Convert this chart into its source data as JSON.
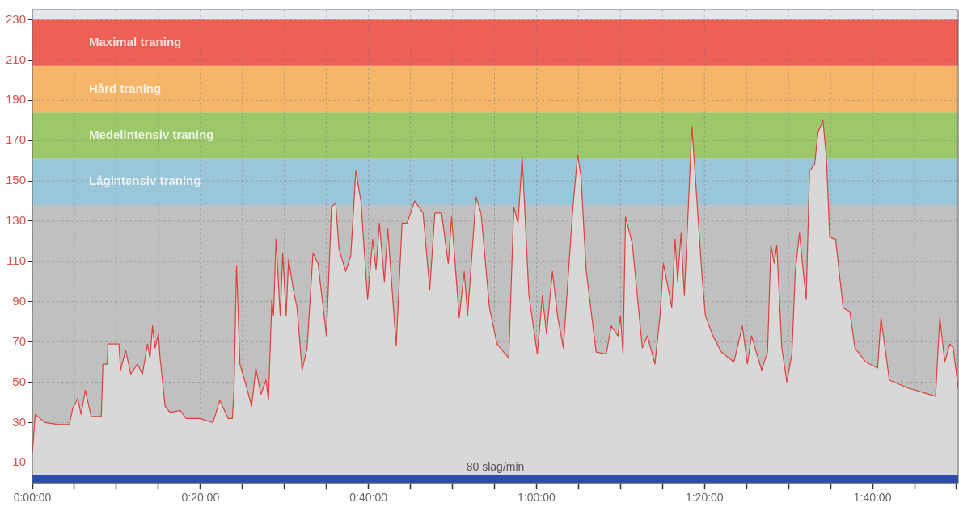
{
  "chart_data": {
    "type": "area",
    "x": [
      0,
      0.34,
      1.5,
      3.1,
      4.4,
      4.8,
      5.4,
      5.8,
      6.3,
      7.0,
      8.2,
      8.4,
      8.9,
      9.0,
      10.3,
      10.5,
      11.1,
      11.7,
      12.5,
      13.1,
      13.7,
      14.0,
      14.3,
      14.6,
      15.0,
      15.2,
      15.8,
      16.4,
      17.6,
      18.3,
      19.9,
      21.5,
      22.3,
      23.3,
      23.8,
      24.0,
      24.3,
      24.7,
      25.4,
      26.1,
      26.6,
      27.2,
      27.8,
      28.1,
      28.5,
      28.7,
      29.0,
      29.5,
      29.8,
      30.2,
      30.5,
      31.1,
      31.5,
      32.1,
      32.7,
      33.4,
      34.0,
      35.0,
      35.6,
      36.1,
      36.5,
      37.3,
      37.9,
      38.5,
      39.1,
      39.9,
      40.5,
      40.9,
      41.3,
      41.9,
      42.3,
      43.3,
      44.0,
      44.6,
      45.5,
      46.5,
      47.3,
      47.9,
      48.7,
      49.5,
      49.9,
      50.8,
      51.4,
      51.8,
      52.8,
      53.4,
      54.4,
      55.3,
      56.7,
      57.3,
      57.8,
      58.3,
      59.1,
      60.1,
      60.7,
      61.2,
      61.9,
      62.5,
      63.2,
      64.3,
      64.9,
      65.3,
      65.9,
      67.1,
      68.3,
      68.9,
      69.7,
      70.0,
      70.3,
      70.6,
      71.4,
      72.6,
      73.2,
      74.1,
      74.7,
      75.1,
      75.7,
      76.1,
      76.5,
      76.8,
      77.2,
      77.6,
      78.5,
      79.7,
      80.1,
      81.0,
      82.0,
      83.5,
      84.5,
      85.1,
      85.6,
      86.8,
      87.5,
      87.9,
      88.3,
      88.6,
      89.2,
      89.8,
      90.4,
      90.8,
      91.3,
      92.1,
      92.5,
      93.1,
      93.5,
      94.1,
      94.5,
      94.9,
      95.6,
      96.5,
      97.3,
      97.9,
      99.2,
      100.6,
      101.0,
      102.0,
      104.3,
      105.9,
      107.5,
      108.0,
      108.6,
      109.2,
      109.6,
      110.2
    ],
    "series": [
      {
        "color": "#e0403a",
        "values": [
          15,
          34,
          30,
          29,
          29,
          37,
          42,
          34,
          46,
          33,
          33,
          59,
          59,
          69,
          69,
          56,
          66,
          54,
          59,
          54,
          69,
          62,
          78,
          67,
          74,
          62,
          38,
          35,
          36,
          32,
          32,
          30,
          41,
          32,
          32,
          46,
          108,
          59,
          49,
          38,
          57,
          44,
          51,
          41,
          91,
          83,
          121,
          83,
          114,
          83,
          111,
          95,
          87,
          56,
          67,
          114,
          109,
          73,
          137,
          139,
          116,
          105,
          113,
          155,
          140,
          91,
          121,
          106,
          129,
          100,
          126,
          68,
          129,
          129,
          140,
          134,
          96,
          134,
          134,
          109,
          132,
          82,
          105,
          83,
          142,
          134,
          87,
          69,
          62,
          137,
          129,
          162,
          93,
          64,
          93,
          74,
          105,
          83,
          67,
          135,
          163,
          152,
          106,
          65,
          64,
          78,
          73,
          83,
          64,
          132,
          119,
          67,
          73,
          59,
          83,
          109,
          96,
          87,
          121,
          100,
          124,
          93,
          177,
          103,
          83,
          73,
          65,
          60,
          78,
          59,
          73,
          56,
          65,
          118,
          109,
          118,
          67,
          50,
          64,
          105,
          124,
          91,
          155,
          158,
          174,
          180,
          162,
          122,
          121,
          87,
          85,
          67,
          60,
          57,
          82,
          51,
          47,
          45,
          43,
          82,
          60,
          69,
          67,
          47
        ]
      }
    ],
    "xlim": [
      0,
      110.2
    ],
    "ylim": [
      0,
      235
    ],
    "xticks": [
      {
        "value": 0,
        "label": "0:00:00"
      },
      {
        "value": 5,
        "label": null
      },
      {
        "value": 10,
        "label": null
      },
      {
        "value": 15,
        "label": null
      },
      {
        "value": 20,
        "label": "0:20:00"
      },
      {
        "value": 25,
        "label": null
      },
      {
        "value": 30,
        "label": null
      },
      {
        "value": 35,
        "label": null
      },
      {
        "value": 40,
        "label": "0:40:00"
      },
      {
        "value": 45,
        "label": null
      },
      {
        "value": 50,
        "label": null
      },
      {
        "value": 55,
        "label": null
      },
      {
        "value": 60,
        "label": "1:00:00"
      },
      {
        "value": 65,
        "label": null
      },
      {
        "value": 70,
        "label": null
      },
      {
        "value": 75,
        "label": null
      },
      {
        "value": 80,
        "label": "1:20:00"
      },
      {
        "value": 85,
        "label": null
      },
      {
        "value": 90,
        "label": null
      },
      {
        "value": 95,
        "label": null
      },
      {
        "value": 100,
        "label": "1:40:00"
      },
      {
        "value": 105,
        "label": null
      },
      {
        "value": 110,
        "label": null
      }
    ],
    "yticks": [
      10,
      30,
      50,
      70,
      90,
      110,
      130,
      150,
      170,
      190,
      210,
      230
    ],
    "bands": [
      {
        "axis": "y",
        "from": 4,
        "to": 138,
        "color": "#c0c0c0"
      },
      {
        "axis": "y",
        "from": 138,
        "to": 161,
        "label": "Lågintensiv traning",
        "color": "#9ac6d9"
      },
      {
        "axis": "y",
        "from": 161,
        "to": 184,
        "label": "Medelintensiv traning",
        "color": "#9cc86a"
      },
      {
        "axis": "y",
        "from": 184,
        "to": 207,
        "label": "Hård traning",
        "color": "#f5b66a"
      },
      {
        "axis": "y",
        "from": 207,
        "to": 230,
        "label": "Maximal traning",
        "color": "#ee5f55"
      },
      {
        "axis": "y",
        "from": 0,
        "to": 4,
        "color": "#2a4dab"
      }
    ],
    "annotations": [
      "80 slag/min"
    ],
    "grid": true,
    "legend": false,
    "marker": "none",
    "line_style": "solid"
  }
}
